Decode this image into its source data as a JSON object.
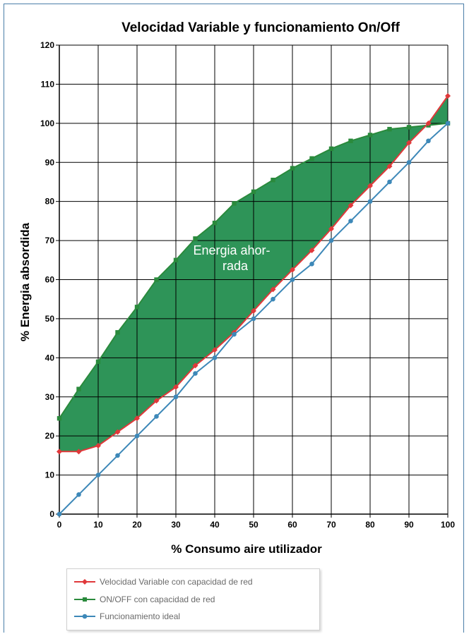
{
  "chart_data": {
    "type": "line",
    "title": "Velocidad Variable y funcionamiento  On/Off",
    "xlabel": "% Consumo aire utilizador",
    "ylabel": "% Energia absordida",
    "xlim": [
      0,
      100
    ],
    "ylim": [
      0,
      120
    ],
    "x_ticks": [
      "0",
      "10",
      "20",
      "30",
      "40",
      "50",
      "60",
      "70",
      "80",
      "90",
      "100"
    ],
    "y_ticks": [
      "0",
      "10",
      "20",
      "30",
      "40",
      "50",
      "60",
      "70",
      "80",
      "90",
      "100",
      "110",
      "120"
    ],
    "grid": true,
    "legend_position": "bottom-left",
    "annotation": {
      "lines": [
        "Energia ahor-",
        "rada"
      ],
      "fill_color": "#2e9458"
    },
    "series": [
      {
        "name": "Velocidad Variable con capacidad de red",
        "color": "#e0383a",
        "marker": "diamond",
        "points": [
          [
            0,
            16
          ],
          [
            5,
            16
          ],
          [
            10,
            17.5
          ],
          [
            15,
            21
          ],
          [
            20,
            24.5
          ],
          [
            25,
            29
          ],
          [
            30,
            32.5
          ],
          [
            35,
            38
          ],
          [
            40,
            42
          ],
          [
            45,
            46.5
          ],
          [
            50,
            52
          ],
          [
            55,
            57.5
          ],
          [
            60,
            62.5
          ],
          [
            65,
            67.5
          ],
          [
            70,
            73
          ],
          [
            75,
            79
          ],
          [
            80,
            84
          ],
          [
            85,
            89
          ],
          [
            90,
            95
          ],
          [
            95,
            100
          ],
          [
            100,
            107
          ]
        ]
      },
      {
        "name": "ON/OFF con capacidad de red",
        "color": "#2a8a3c",
        "marker": "square",
        "points": [
          [
            0,
            24.5
          ],
          [
            5,
            32
          ],
          [
            10,
            39
          ],
          [
            15,
            46.5
          ],
          [
            20,
            53
          ],
          [
            25,
            60
          ],
          [
            30,
            65
          ],
          [
            35,
            70.5
          ],
          [
            40,
            74.5
          ],
          [
            45,
            79.5
          ],
          [
            50,
            82.5
          ],
          [
            55,
            85.5
          ],
          [
            60,
            88.5
          ],
          [
            65,
            91
          ],
          [
            70,
            93.5
          ],
          [
            75,
            95.5
          ],
          [
            80,
            97
          ],
          [
            85,
            98.5
          ],
          [
            90,
            99
          ],
          [
            95,
            99.5
          ],
          [
            100,
            100
          ]
        ]
      },
      {
        "name": "Funcionamiento ideal",
        "color": "#3d88b8",
        "marker": "circle",
        "points": [
          [
            0,
            0
          ],
          [
            5,
            5
          ],
          [
            10,
            10
          ],
          [
            15,
            15
          ],
          [
            20,
            20
          ],
          [
            25,
            25
          ],
          [
            30,
            30
          ],
          [
            35,
            36
          ],
          [
            40,
            40
          ],
          [
            45,
            46
          ],
          [
            50,
            50
          ],
          [
            55,
            55
          ],
          [
            60,
            60
          ],
          [
            65,
            64
          ],
          [
            70,
            70
          ],
          [
            75,
            75
          ],
          [
            80,
            80
          ],
          [
            85,
            85
          ],
          [
            90,
            90
          ],
          [
            95,
            95.5
          ],
          [
            100,
            100
          ]
        ]
      }
    ]
  }
}
